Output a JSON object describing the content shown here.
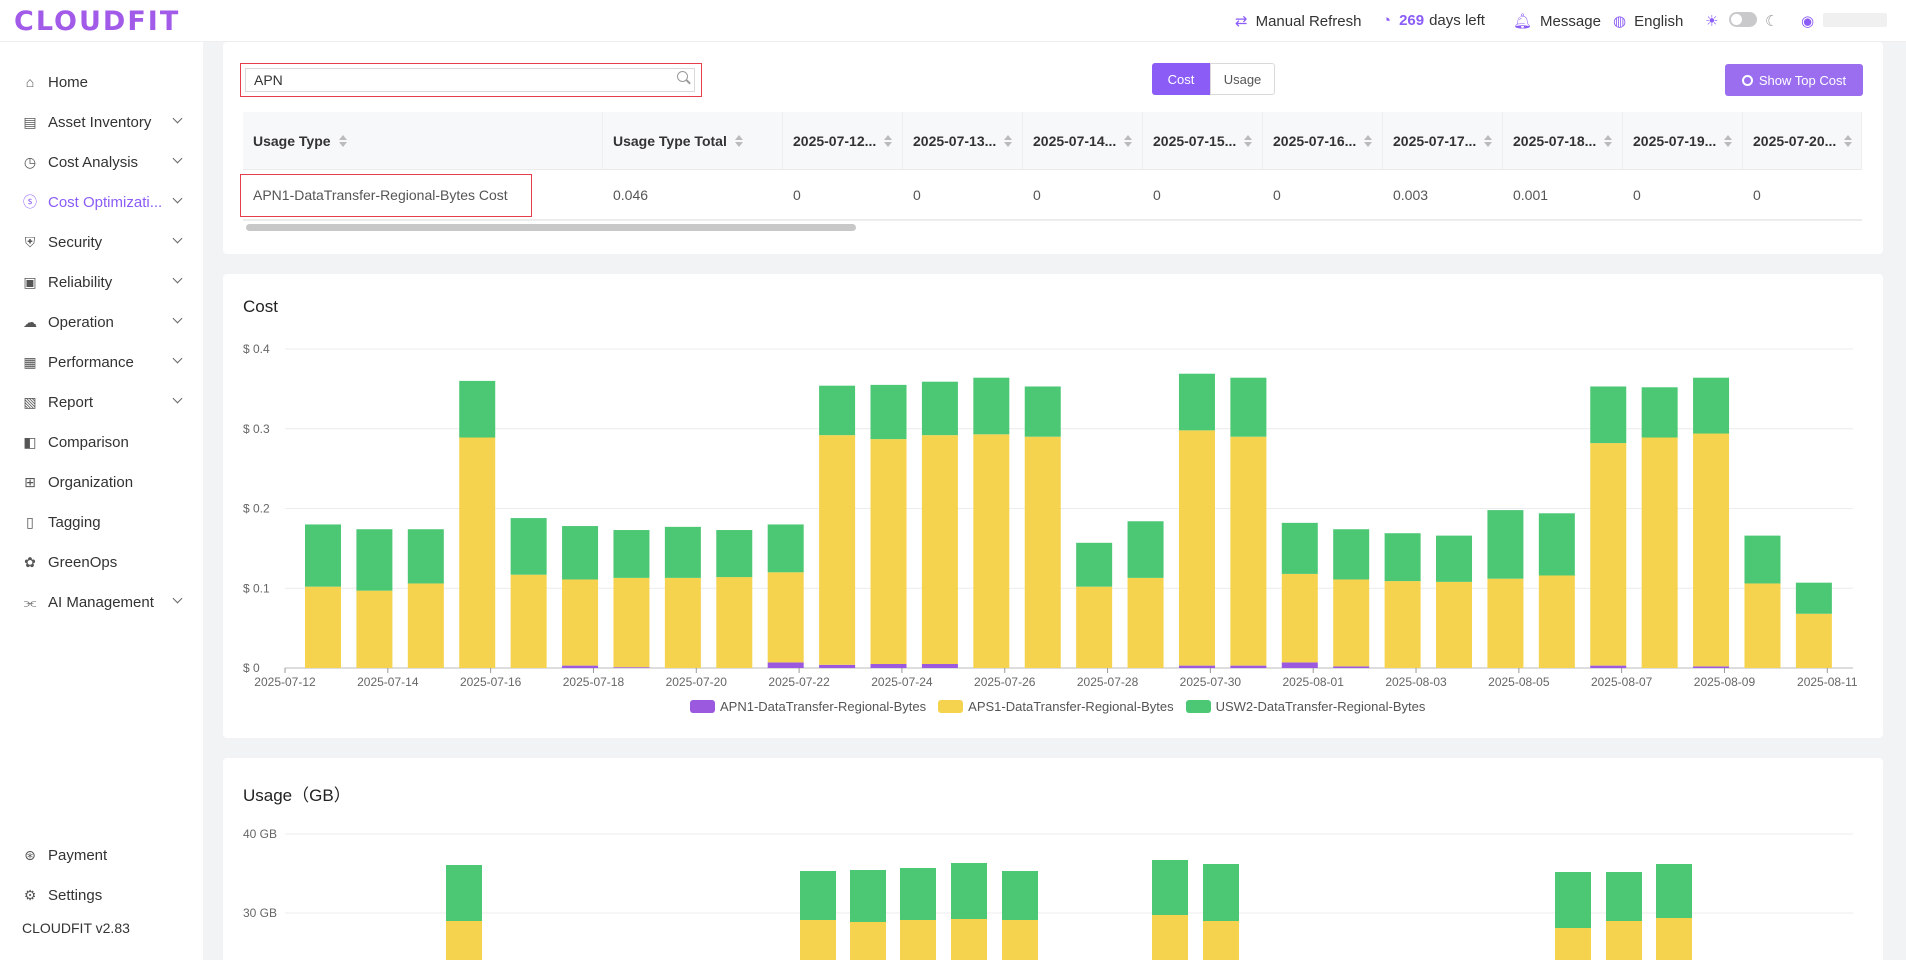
{
  "app": {
    "logo": "CLOUDFIT",
    "version": "CLOUDFIT v2.83"
  },
  "topbar": {
    "refresh": "Manual Refresh",
    "days_num": "269",
    "days_label": "days left",
    "message": "Message",
    "language": "English"
  },
  "sidebar": {
    "items": [
      {
        "label": "Home",
        "icon": "home-icon",
        "chevron": false
      },
      {
        "label": "Asset Inventory",
        "icon": "asset-icon",
        "chevron": true
      },
      {
        "label": "Cost Analysis",
        "icon": "gauge-icon",
        "chevron": true
      },
      {
        "label": "Cost Optimizati...",
        "icon": "dollar-icon",
        "chevron": true,
        "active": true
      },
      {
        "label": "Security",
        "icon": "security-icon",
        "chevron": true
      },
      {
        "label": "Reliability",
        "icon": "reliability-icon",
        "chevron": true
      },
      {
        "label": "Operation",
        "icon": "operation-icon",
        "chevron": true
      },
      {
        "label": "Performance",
        "icon": "performance-icon",
        "chevron": true
      },
      {
        "label": "Report",
        "icon": "report-icon",
        "chevron": true
      },
      {
        "label": "Comparison",
        "icon": "comparison-icon",
        "chevron": false
      },
      {
        "label": "Organization",
        "icon": "organization-icon",
        "chevron": false
      },
      {
        "label": "Tagging",
        "icon": "tag-icon",
        "chevron": false
      },
      {
        "label": "GreenOps",
        "icon": "greenops-icon",
        "chevron": false
      },
      {
        "label": "AI Management",
        "icon": "ai-icon",
        "chevron": true
      }
    ],
    "bottom": [
      {
        "label": "Payment",
        "icon": "payment-icon"
      },
      {
        "label": "Settings",
        "icon": "gear-icon"
      }
    ]
  },
  "filter": {
    "search_value": "APN",
    "toggle_cost": "Cost",
    "toggle_usage": "Usage",
    "show_top_cost": "Show Top Cost"
  },
  "table": {
    "headers": [
      "Usage Type",
      "Usage Type Total",
      "2025-07-12...",
      "2025-07-13...",
      "2025-07-14...",
      "2025-07-15...",
      "2025-07-16...",
      "2025-07-17...",
      "2025-07-18...",
      "2025-07-19...",
      "2025-07-20..."
    ],
    "rows": [
      [
        "APN1-DataTransfer-Regional-Bytes Cost",
        "0.046",
        "0",
        "0",
        "0",
        "0",
        "0",
        "0.003",
        "0.001",
        "0",
        "0"
      ]
    ]
  },
  "colors": {
    "apn1": "#9b59e0",
    "aps1": "#f5d34e",
    "usw2": "#4cc874",
    "accent": "#8b5cf6"
  },
  "cost_chart": {
    "title": "Cost",
    "chart_data": {
      "type": "bar",
      "stacked": true,
      "title": "Cost",
      "ylim": [
        0,
        0.4
      ],
      "yticks": [
        "$ 0",
        "$ 0.1",
        "$ 0.2",
        "$ 0.3",
        "$ 0.4"
      ],
      "xticks": [
        "2025-07-12",
        "2025-07-14",
        "2025-07-16",
        "2025-07-18",
        "2025-07-20",
        "2025-07-22",
        "2025-07-24",
        "2025-07-26",
        "2025-07-28",
        "2025-07-30",
        "2025-08-01",
        "2025-08-03",
        "2025-08-05",
        "2025-08-07",
        "2025-08-09",
        "2025-08-11"
      ],
      "categories": [
        "2025-07-12",
        "2025-07-13",
        "2025-07-14",
        "2025-07-15",
        "2025-07-16",
        "2025-07-17",
        "2025-07-18",
        "2025-07-19",
        "2025-07-20",
        "2025-07-21",
        "2025-07-22",
        "2025-07-23",
        "2025-07-24",
        "2025-07-25",
        "2025-07-26",
        "2025-07-27",
        "2025-07-28",
        "2025-07-29",
        "2025-07-30",
        "2025-07-31",
        "2025-08-01",
        "2025-08-02",
        "2025-08-03",
        "2025-08-04",
        "2025-08-05",
        "2025-08-06",
        "2025-08-07",
        "2025-08-08",
        "2025-08-09",
        "2025-08-10",
        "2025-08-11"
      ],
      "series": [
        {
          "name": "APN1-DataTransfer-Regional-Bytes",
          "values": [
            0,
            0,
            0,
            0,
            0,
            0.003,
            0.001,
            0,
            0,
            0.007,
            0.004,
            0.005,
            0.005,
            0,
            0,
            0,
            0,
            0.003,
            0.003,
            0.007,
            0.002,
            0,
            0,
            0,
            0,
            0.003,
            0,
            0.002,
            0,
            0,
            0
          ]
        },
        {
          "name": "APS1-DataTransfer-Regional-Bytes",
          "values": [
            0.102,
            0.097,
            0.106,
            0.289,
            0.117,
            0.108,
            0.112,
            0.113,
            0.114,
            0.113,
            0.288,
            0.282,
            0.287,
            0.293,
            0.29,
            0.102,
            0.113,
            0.295,
            0.287,
            0.111,
            0.109,
            0.109,
            0.108,
            0.112,
            0.116,
            0.279,
            0.289,
            0.292,
            0.106,
            0.068,
            0
          ]
        },
        {
          "name": "USW2-DataTransfer-Regional-Bytes",
          "values": [
            0.078,
            0.077,
            0.068,
            0.071,
            0.071,
            0.067,
            0.06,
            0.064,
            0.059,
            0.06,
            0.062,
            0.068,
            0.067,
            0.071,
            0.063,
            0.055,
            0.071,
            0.071,
            0.074,
            0.064,
            0.063,
            0.06,
            0.058,
            0.086,
            0.078,
            0.071,
            0.063,
            0.07,
            0.06,
            0.039,
            0
          ]
        }
      ]
    }
  },
  "usage_chart": {
    "title": "Usage（GB）",
    "yticks": [
      "30 GB",
      "40 GB"
    ]
  },
  "legend": [
    {
      "label": "APN1-DataTransfer-Regional-Bytes",
      "color": "#9b59e0"
    },
    {
      "label": "APS1-DataTransfer-Regional-Bytes",
      "color": "#f5d34e"
    },
    {
      "label": "USW2-DataTransfer-Regional-Bytes",
      "color": "#4cc874"
    }
  ]
}
